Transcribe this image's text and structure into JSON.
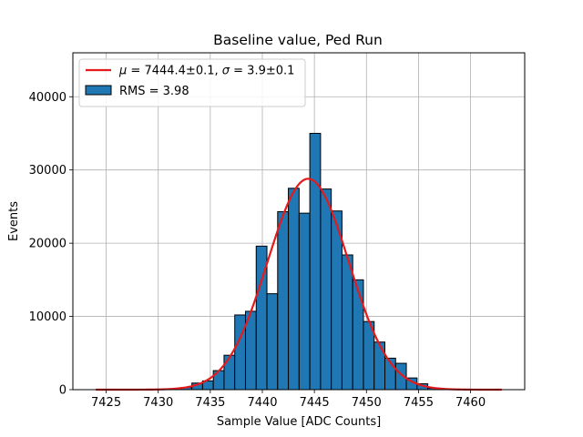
{
  "chart_data": {
    "type": "bar",
    "title": "Baseline value, Ped Run",
    "xlabel": "Sample Value [ADC Counts]",
    "ylabel": "Events",
    "xlim": [
      7421.8,
      7465.2
    ],
    "ylim": [
      0,
      46000
    ],
    "xticks": [
      7425,
      7430,
      7435,
      7440,
      7445,
      7450,
      7455,
      7460
    ],
    "yticks": [
      0,
      10000,
      20000,
      30000,
      40000
    ],
    "grid": true,
    "legend_position": "top-left",
    "histogram": {
      "name": "RMS = 3.98",
      "color": "#1f77b4",
      "edgecolor": "#000000",
      "bins": [
        {
          "x0": 7432.2,
          "x1": 7433.23,
          "y": 300
        },
        {
          "x0": 7433.23,
          "x1": 7434.26,
          "y": 900
        },
        {
          "x0": 7434.26,
          "x1": 7435.29,
          "y": 1200
        },
        {
          "x0": 7435.29,
          "x1": 7436.32,
          "y": 2600
        },
        {
          "x0": 7436.32,
          "x1": 7437.35,
          "y": 4700
        },
        {
          "x0": 7437.35,
          "x1": 7438.38,
          "y": 10200
        },
        {
          "x0": 7438.38,
          "x1": 7439.41,
          "y": 10700
        },
        {
          "x0": 7439.41,
          "x1": 7440.44,
          "y": 19600
        },
        {
          "x0": 7440.44,
          "x1": 7441.47,
          "y": 13100
        },
        {
          "x0": 7441.47,
          "x1": 7442.5,
          "y": 24300
        },
        {
          "x0": 7442.5,
          "x1": 7443.53,
          "y": 27500
        },
        {
          "x0": 7443.53,
          "x1": 7444.56,
          "y": 24100
        },
        {
          "x0": 7444.56,
          "x1": 7445.59,
          "y": 35000
        },
        {
          "x0": 7445.59,
          "x1": 7446.62,
          "y": 27400
        },
        {
          "x0": 7446.62,
          "x1": 7447.65,
          "y": 24400
        },
        {
          "x0": 7447.65,
          "x1": 7448.68,
          "y": 18400
        },
        {
          "x0": 7448.68,
          "x1": 7449.71,
          "y": 15000
        },
        {
          "x0": 7449.71,
          "x1": 7450.74,
          "y": 9300
        },
        {
          "x0": 7450.74,
          "x1": 7451.77,
          "y": 6500
        },
        {
          "x0": 7451.77,
          "x1": 7452.8,
          "y": 4300
        },
        {
          "x0": 7452.8,
          "x1": 7453.83,
          "y": 3600
        },
        {
          "x0": 7453.83,
          "x1": 7454.86,
          "y": 1600
        },
        {
          "x0": 7454.86,
          "x1": 7455.89,
          "y": 800
        },
        {
          "x0": 7455.89,
          "x1": 7456.92,
          "y": 200
        }
      ]
    },
    "fit": {
      "type": "gaussian",
      "name": "μ = 7444.4±0.1, σ = 3.9±0.1",
      "legend_parts": {
        "mu_symbol": "μ",
        "mu_text": " = 7444.4±0.1, ",
        "sigma_symbol": "σ",
        "sigma_text": " = 3.9±0.1"
      },
      "mu": 7444.4,
      "sigma": 3.9,
      "amplitude": 28800,
      "x_range": [
        7424,
        7463
      ],
      "color": "#e41a1c"
    }
  }
}
